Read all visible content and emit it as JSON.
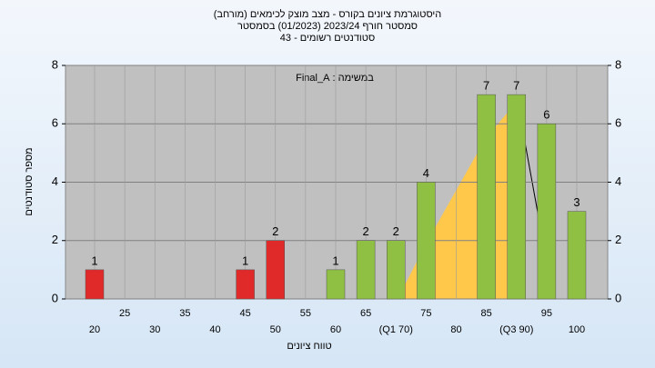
{
  "chart_data": {
    "type": "bar",
    "title": [
      "היסטוגרמת ציונים בקורס - מצב מוצק לכימאים (מורחב)",
      "סמסטר חורף 2023/24 (01/2023) בסמסטר",
      "סטודנטים רשומים - 43"
    ],
    "annotation": "במשימה : Final_A",
    "ylabel": "מספר סטודנטים",
    "xlabel": "טווח ציונים",
    "categories": [
      "20",
      "25",
      "30",
      "35",
      "40",
      "45",
      "50",
      "55",
      "60",
      "65",
      "(Q1 70)",
      "75",
      "80",
      "85",
      "(Q3 90)",
      "95",
      "100"
    ],
    "values": [
      1,
      0,
      0,
      0,
      0,
      1,
      2,
      0,
      1,
      2,
      2,
      4,
      0,
      7,
      7,
      6,
      3
    ],
    "colors": [
      "#e02a2a",
      "#e02a2a",
      "#e02a2a",
      "#e02a2a",
      "#e02a2a",
      "#e02a2a",
      "#e02a2a",
      "#e02a2a",
      "#8fc043",
      "#8fc043",
      "#8fc043",
      "#8fc043",
      "#8fc043",
      "#8fc043",
      "#8fc043",
      "#8fc043",
      "#8fc043"
    ],
    "ylim": [
      0,
      8
    ],
    "yticks": [
      0,
      2,
      4,
      6,
      8
    ],
    "y2lim": [
      0,
      8
    ],
    "y2ticks": [
      0,
      2,
      4,
      6,
      8
    ],
    "grid": true
  }
}
